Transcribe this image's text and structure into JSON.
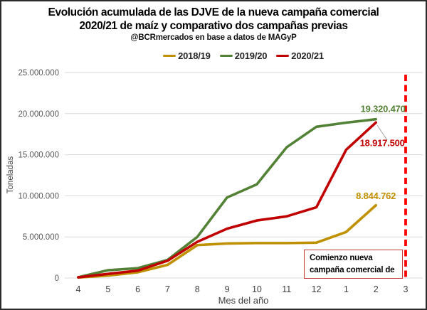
{
  "chart_data": {
    "type": "line",
    "title_line1": "Evolución acumulada de las DJVE de la nueva campaña comercial",
    "title_line2": "2020/21 de maíz y comparativo dos campañas previas",
    "subtitle": "@BCRmercados en base a datos de MAGyP",
    "ylabel": "Toneladas",
    "xlabel": "Mes del año",
    "x_categories": [
      "4",
      "5",
      "6",
      "7",
      "8",
      "9",
      "10",
      "11",
      "12",
      "1",
      "2",
      "3"
    ],
    "y_ticks": [
      "0",
      "5.000.000",
      "10.000.000",
      "15.000.000",
      "20.000.000",
      "25.000.000"
    ],
    "ylim": [
      0,
      25000000
    ],
    "grid": true,
    "legend_position": "top-center",
    "gridline_color": "#d9d9d9",
    "axis_text_color": "#595959",
    "series": [
      {
        "name": "2018/19",
        "color": "#BF9000",
        "end_label": "8.844.762",
        "values": [
          60000,
          300000,
          700000,
          1600000,
          4000000,
          4200000,
          4250000,
          4250000,
          4300000,
          5600000,
          8844762,
          null
        ]
      },
      {
        "name": "2019/20",
        "color": "#538135",
        "end_label": "19.320.470",
        "values": [
          100000,
          950000,
          1200000,
          2200000,
          5000000,
          9800000,
          11400000,
          15900000,
          18400000,
          18900000,
          19320470,
          null
        ]
      },
      {
        "name": "2020/21",
        "color": "#C00000",
        "end_label": "18.917.500",
        "values": [
          80000,
          500000,
          900000,
          2100000,
          4400000,
          6000000,
          7000000,
          7500000,
          8600000,
          15600000,
          18917500,
          null
        ]
      }
    ],
    "reference_line": {
      "x_category": "3",
      "color": "#FF0000",
      "style": "dashed"
    },
    "annotation_box": {
      "line1": "Comienzo nueva",
      "line2": "campaña comercial de",
      "border_color": "#c5393b"
    }
  }
}
